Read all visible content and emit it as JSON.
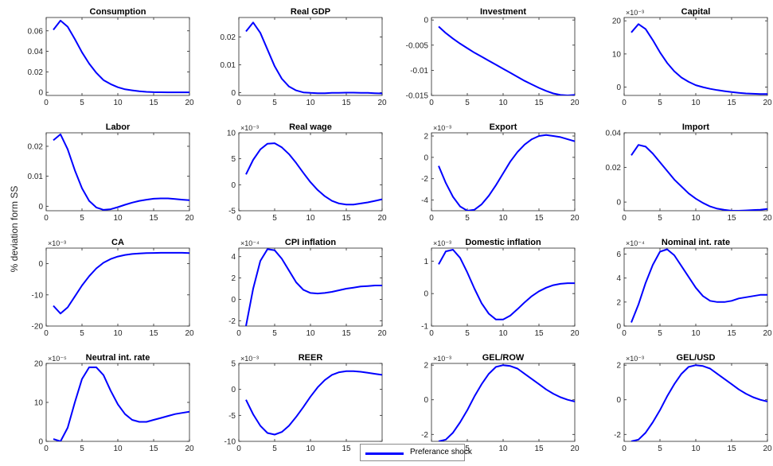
{
  "figure": {
    "ylabel": "% deviation form SS",
    "line_color": "#0000ff",
    "legend": {
      "label": "Preferance shock",
      "placement": "bottom-center"
    }
  },
  "chart_data": [
    {
      "type": "line",
      "title": "Consumption",
      "multiplier": "",
      "xlim": [
        0,
        20
      ],
      "ylim": [
        -0.003,
        0.073
      ],
      "xticks": [
        "0",
        "5",
        "10",
        "15",
        "20"
      ],
      "yticks": [
        [
          "0",
          0
        ],
        [
          "0.02",
          0.02
        ],
        [
          "0.04",
          0.04
        ],
        [
          "0.06",
          0.06
        ]
      ],
      "x": [
        1,
        2,
        3,
        4,
        5,
        6,
        7,
        8,
        9,
        10,
        11,
        12,
        13,
        14,
        15,
        16,
        17,
        18,
        19,
        20
      ],
      "series": [
        {
          "name": "Preferance shock",
          "values": [
            0.061,
            0.07,
            0.064,
            0.052,
            0.039,
            0.028,
            0.019,
            0.012,
            0.008,
            0.005,
            0.003,
            0.002,
            0.001,
            0.0005,
            0.0002,
            0.0001,
            0,
            0,
            0,
            0
          ]
        }
      ]
    },
    {
      "type": "line",
      "title": "Real GDP",
      "multiplier": "",
      "xlim": [
        0,
        20
      ],
      "ylim": [
        -0.001,
        0.027
      ],
      "xticks": [
        "0",
        "5",
        "10",
        "15",
        "20"
      ],
      "yticks": [
        [
          "0",
          0
        ],
        [
          "0.01",
          0.01
        ],
        [
          "0.02",
          0.02
        ]
      ],
      "x": [
        1,
        2,
        3,
        4,
        5,
        6,
        7,
        8,
        9,
        10,
        11,
        12,
        13,
        14,
        15,
        16,
        17,
        18,
        19,
        20
      ],
      "series": [
        {
          "name": "Preferance shock",
          "values": [
            0.022,
            0.0252,
            0.0215,
            0.0155,
            0.0095,
            0.005,
            0.0022,
            0.0008,
            0.0001,
            -0.0001,
            -0.0002,
            -0.0002,
            -0.0001,
            -0.0001,
            0,
            0,
            -0.0001,
            -0.0001,
            -0.0002,
            -0.0003
          ]
        }
      ]
    },
    {
      "type": "line",
      "title": "Investment",
      "multiplier": "",
      "xlim": [
        0,
        20
      ],
      "ylim": [
        -0.015,
        0.0005
      ],
      "xticks": [
        "0",
        "5",
        "10",
        "15",
        "20"
      ],
      "yticks": [
        [
          "0",
          0
        ],
        [
          "-0.005",
          -0.005
        ],
        [
          "-0.01",
          -0.01
        ],
        [
          "-0.015",
          -0.015
        ]
      ],
      "x": [
        1,
        2,
        3,
        4,
        5,
        6,
        7,
        8,
        9,
        10,
        11,
        12,
        13,
        14,
        15,
        16,
        17,
        18,
        19,
        20
      ],
      "series": [
        {
          "name": "Preferance shock",
          "values": [
            -0.0013,
            -0.0026,
            -0.0037,
            -0.0047,
            -0.0056,
            -0.0065,
            -0.0073,
            -0.0081,
            -0.0089,
            -0.0097,
            -0.0105,
            -0.0113,
            -0.0121,
            -0.0128,
            -0.0135,
            -0.0141,
            -0.0146,
            -0.0149,
            -0.015,
            -0.0149
          ]
        }
      ]
    },
    {
      "type": "line",
      "title": "Capital",
      "multiplier": "×10⁻³",
      "xlim": [
        0,
        20
      ],
      "ylim": [
        -2.5,
        21
      ],
      "xticks": [
        "0",
        "5",
        "10",
        "15",
        "20"
      ],
      "yticks": [
        [
          "0",
          0
        ],
        [
          "10",
          10
        ],
        [
          "20",
          20
        ]
      ],
      "x": [
        1,
        2,
        3,
        4,
        5,
        6,
        7,
        8,
        9,
        10,
        11,
        12,
        13,
        14,
        15,
        16,
        17,
        18,
        19,
        20
      ],
      "series": [
        {
          "name": "Preferance shock",
          "values": [
            16.5,
            19,
            17.5,
            14.2,
            10.5,
            7.3,
            4.8,
            2.9,
            1.6,
            0.6,
            0,
            -0.5,
            -0.9,
            -1.2,
            -1.5,
            -1.7,
            -1.9,
            -2,
            -2.1,
            -2.1
          ]
        }
      ]
    },
    {
      "type": "line",
      "title": "Labor",
      "multiplier": "",
      "xlim": [
        0,
        20
      ],
      "ylim": [
        -0.0015,
        0.0245
      ],
      "xticks": [
        "0",
        "5",
        "10",
        "15",
        "20"
      ],
      "yticks": [
        [
          "0",
          0
        ],
        [
          "0.01",
          0.01
        ],
        [
          "0.02",
          0.02
        ]
      ],
      "x": [
        1,
        2,
        3,
        4,
        5,
        6,
        7,
        8,
        9,
        10,
        11,
        12,
        13,
        14,
        15,
        16,
        17,
        18,
        19,
        20
      ],
      "series": [
        {
          "name": "Preferance shock",
          "values": [
            0.022,
            0.024,
            0.019,
            0.012,
            0.006,
            0.0018,
            -0.0004,
            -0.0012,
            -0.001,
            -0.0003,
            0.0005,
            0.0012,
            0.0018,
            0.0022,
            0.0025,
            0.0026,
            0.0026,
            0.0024,
            0.0022,
            0.002
          ]
        }
      ]
    },
    {
      "type": "line",
      "title": "Real wage",
      "multiplier": "×10⁻³",
      "xlim": [
        0,
        20
      ],
      "ylim": [
        -5,
        10
      ],
      "xticks": [
        "0",
        "5",
        "10",
        "15",
        "20"
      ],
      "yticks": [
        [
          "-5",
          -5
        ],
        [
          "0",
          0
        ],
        [
          "5",
          5
        ],
        [
          "10",
          10
        ]
      ],
      "x": [
        1,
        2,
        3,
        4,
        5,
        6,
        7,
        8,
        9,
        10,
        11,
        12,
        13,
        14,
        15,
        16,
        17,
        18,
        19,
        20
      ],
      "series": [
        {
          "name": "Preferance shock",
          "values": [
            2,
            4.8,
            6.8,
            7.9,
            8,
            7.2,
            5.9,
            4.2,
            2.3,
            0.5,
            -1,
            -2.2,
            -3.1,
            -3.6,
            -3.8,
            -3.8,
            -3.6,
            -3.4,
            -3.1,
            -2.8
          ]
        }
      ]
    },
    {
      "type": "line",
      "title": "Export",
      "multiplier": "×10⁻³",
      "xlim": [
        0,
        20
      ],
      "ylim": [
        -5,
        2.3
      ],
      "xticks": [
        "0",
        "5",
        "10",
        "15",
        "20"
      ],
      "yticks": [
        [
          "-4",
          -4
        ],
        [
          "-2",
          -2
        ],
        [
          "0",
          0
        ],
        [
          "2",
          2
        ]
      ],
      "x": [
        1,
        2,
        3,
        4,
        5,
        6,
        7,
        8,
        9,
        10,
        11,
        12,
        13,
        14,
        15,
        16,
        17,
        18,
        19,
        20
      ],
      "series": [
        {
          "name": "Preferance shock",
          "values": [
            -0.8,
            -2.4,
            -3.7,
            -4.6,
            -5,
            -4.9,
            -4.4,
            -3.6,
            -2.6,
            -1.5,
            -0.4,
            0.5,
            1.2,
            1.7,
            2,
            2.1,
            2,
            1.9,
            1.7,
            1.5
          ]
        }
      ]
    },
    {
      "type": "line",
      "title": "Import",
      "multiplier": "",
      "xlim": [
        0,
        20
      ],
      "ylim": [
        -0.005,
        0.04
      ],
      "xticks": [
        "0",
        "5",
        "10",
        "15",
        "20"
      ],
      "yticks": [
        [
          "0",
          0
        ],
        [
          "0.02",
          0.02
        ],
        [
          "0.04",
          0.04
        ]
      ],
      "x": [
        1,
        2,
        3,
        4,
        5,
        6,
        7,
        8,
        9,
        10,
        11,
        12,
        13,
        14,
        15,
        16,
        17,
        18,
        19,
        20
      ],
      "series": [
        {
          "name": "Preferance shock",
          "values": [
            0.027,
            0.033,
            0.032,
            0.028,
            0.023,
            0.018,
            0.013,
            0.009,
            0.005,
            0.002,
            -0.0005,
            -0.0025,
            -0.0038,
            -0.0045,
            -0.005,
            -0.005,
            -0.0048,
            -0.0046,
            -0.0044,
            -0.004
          ]
        }
      ]
    },
    {
      "type": "line",
      "title": "CA",
      "multiplier": "×10⁻³",
      "xlim": [
        0,
        20
      ],
      "ylim": [
        -20,
        5
      ],
      "xticks": [
        "0",
        "5",
        "10",
        "15",
        "20"
      ],
      "yticks": [
        [
          "-20",
          -20
        ],
        [
          "-10",
          -10
        ],
        [
          "0",
          0
        ]
      ],
      "x": [
        1,
        2,
        3,
        4,
        5,
        6,
        7,
        8,
        9,
        10,
        11,
        12,
        13,
        14,
        15,
        16,
        17,
        18,
        19,
        20
      ],
      "series": [
        {
          "name": "Preferance shock",
          "values": [
            -13.5,
            -16,
            -14,
            -10.5,
            -7,
            -4,
            -1.5,
            0.3,
            1.5,
            2.3,
            2.8,
            3.1,
            3.3,
            3.4,
            3.45,
            3.5,
            3.5,
            3.5,
            3.5,
            3.4
          ]
        }
      ]
    },
    {
      "type": "line",
      "title": "CPI inflation",
      "multiplier": "×10⁻⁴",
      "xlim": [
        0,
        20
      ],
      "ylim": [
        -2.5,
        4.8
      ],
      "xticks": [
        "0",
        "5",
        "10",
        "15",
        "20"
      ],
      "yticks": [
        [
          "-2",
          -2
        ],
        [
          "0",
          0
        ],
        [
          "2",
          2
        ],
        [
          "4",
          4
        ]
      ],
      "x": [
        1,
        2,
        3,
        4,
        5,
        6,
        7,
        8,
        9,
        10,
        11,
        12,
        13,
        14,
        15,
        16,
        17,
        18,
        19,
        20
      ],
      "series": [
        {
          "name": "Preferance shock",
          "values": [
            -2.5,
            1,
            3.6,
            4.7,
            4.6,
            3.8,
            2.7,
            1.6,
            0.9,
            0.6,
            0.55,
            0.6,
            0.7,
            0.85,
            1,
            1.1,
            1.2,
            1.25,
            1.3,
            1.3
          ]
        }
      ]
    },
    {
      "type": "line",
      "title": "Domestic inflation",
      "multiplier": "×10⁻³",
      "xlim": [
        0,
        20
      ],
      "ylim": [
        -1,
        1.4
      ],
      "xticks": [
        "0",
        "5",
        "10",
        "15",
        "20"
      ],
      "yticks": [
        [
          "-1",
          -1
        ],
        [
          "0",
          0
        ],
        [
          "1",
          1
        ]
      ],
      "x": [
        1,
        2,
        3,
        4,
        5,
        6,
        7,
        8,
        9,
        10,
        11,
        12,
        13,
        14,
        15,
        16,
        17,
        18,
        19,
        20
      ],
      "series": [
        {
          "name": "Preferance shock",
          "values": [
            0.9,
            1.3,
            1.35,
            1.1,
            0.65,
            0.15,
            -0.3,
            -0.62,
            -0.8,
            -0.8,
            -0.68,
            -0.48,
            -0.27,
            -0.08,
            0.07,
            0.18,
            0.26,
            0.3,
            0.32,
            0.32
          ]
        }
      ]
    },
    {
      "type": "line",
      "title": "Nominal int. rate",
      "multiplier": "×10⁻⁴",
      "xlim": [
        0,
        20
      ],
      "ylim": [
        0,
        6.5
      ],
      "xticks": [
        "0",
        "5",
        "10",
        "15",
        "20"
      ],
      "yticks": [
        [
          "0",
          0
        ],
        [
          "2",
          2
        ],
        [
          "4",
          4
        ],
        [
          "6",
          6
        ]
      ],
      "x": [
        1,
        2,
        3,
        4,
        5,
        6,
        7,
        8,
        9,
        10,
        11,
        12,
        13,
        14,
        15,
        16,
        17,
        18,
        19,
        20
      ],
      "series": [
        {
          "name": "Preferance shock",
          "values": [
            0.3,
            1.8,
            3.6,
            5.1,
            6.2,
            6.4,
            5.9,
            5,
            4.1,
            3.2,
            2.5,
            2.1,
            2,
            2,
            2.1,
            2.3,
            2.4,
            2.5,
            2.6,
            2.6
          ]
        }
      ]
    },
    {
      "type": "line",
      "title": "Neutral int. rate",
      "multiplier": "×10⁻⁵",
      "xlim": [
        0,
        20
      ],
      "ylim": [
        0,
        20
      ],
      "xticks": [
        "0",
        "5",
        "10",
        "15",
        "20"
      ],
      "yticks": [
        [
          "0",
          0
        ],
        [
          "10",
          10
        ],
        [
          "20",
          20
        ]
      ],
      "x": [
        1,
        2,
        3,
        4,
        5,
        6,
        7,
        8,
        9,
        10,
        11,
        12,
        13,
        14,
        15,
        16,
        17,
        18,
        19,
        20
      ],
      "series": [
        {
          "name": "Preferance shock",
          "values": [
            0.6,
            0,
            3.5,
            10,
            16,
            19,
            19,
            17,
            13,
            9.5,
            7,
            5.5,
            5,
            5,
            5.5,
            6,
            6.5,
            7,
            7.3,
            7.6
          ]
        }
      ]
    },
    {
      "type": "line",
      "title": "REER",
      "multiplier": "×10⁻³",
      "xlim": [
        0,
        20
      ],
      "ylim": [
        -10,
        5
      ],
      "xticks": [
        "0",
        "5",
        "10",
        "15",
        "20"
      ],
      "yticks": [
        [
          "-10",
          -10
        ],
        [
          "-5",
          -5
        ],
        [
          "0",
          0
        ],
        [
          "5",
          5
        ]
      ],
      "x": [
        1,
        2,
        3,
        4,
        5,
        6,
        7,
        8,
        9,
        10,
        11,
        12,
        13,
        14,
        15,
        16,
        17,
        18,
        19,
        20
      ],
      "series": [
        {
          "name": "Preferance shock",
          "values": [
            -2,
            -4.8,
            -7,
            -8.4,
            -8.7,
            -8.2,
            -7,
            -5.3,
            -3.4,
            -1.4,
            0.4,
            1.8,
            2.8,
            3.3,
            3.5,
            3.5,
            3.4,
            3.2,
            3,
            2.8
          ]
        }
      ]
    },
    {
      "type": "line",
      "title": "GEL/ROW",
      "multiplier": "×10⁻³",
      "xlim": [
        0,
        20
      ],
      "ylim": [
        -2.4,
        2.1
      ],
      "xticks": [
        "0",
        "5",
        "10",
        "15",
        "20"
      ],
      "yticks": [
        [
          "-2",
          -2
        ],
        [
          "0",
          0
        ],
        [
          "2",
          2
        ]
      ],
      "x": [
        1,
        2,
        3,
        4,
        5,
        6,
        7,
        8,
        9,
        10,
        11,
        12,
        13,
        14,
        15,
        16,
        17,
        18,
        19,
        20
      ],
      "series": [
        {
          "name": "Preferance shock",
          "values": [
            -2.4,
            -2.3,
            -1.9,
            -1.3,
            -0.6,
            0.2,
            0.9,
            1.5,
            1.9,
            2,
            1.95,
            1.8,
            1.5,
            1.2,
            0.9,
            0.6,
            0.35,
            0.15,
            0,
            -0.1
          ]
        }
      ]
    },
    {
      "type": "line",
      "title": "GEL/USD",
      "multiplier": "×10⁻³",
      "xlim": [
        0,
        20
      ],
      "ylim": [
        -2.4,
        2.1
      ],
      "xticks": [
        "0",
        "5",
        "10",
        "15",
        "20"
      ],
      "yticks": [
        [
          "-2",
          -2
        ],
        [
          "0",
          0
        ],
        [
          "2",
          2
        ]
      ],
      "x": [
        1,
        2,
        3,
        4,
        5,
        6,
        7,
        8,
        9,
        10,
        11,
        12,
        13,
        14,
        15,
        16,
        17,
        18,
        19,
        20
      ],
      "series": [
        {
          "name": "Preferance shock",
          "values": [
            -2.4,
            -2.3,
            -1.9,
            -1.3,
            -0.6,
            0.2,
            0.9,
            1.5,
            1.9,
            2,
            1.95,
            1.8,
            1.5,
            1.2,
            0.9,
            0.6,
            0.35,
            0.15,
            0,
            -0.1
          ]
        }
      ]
    }
  ]
}
